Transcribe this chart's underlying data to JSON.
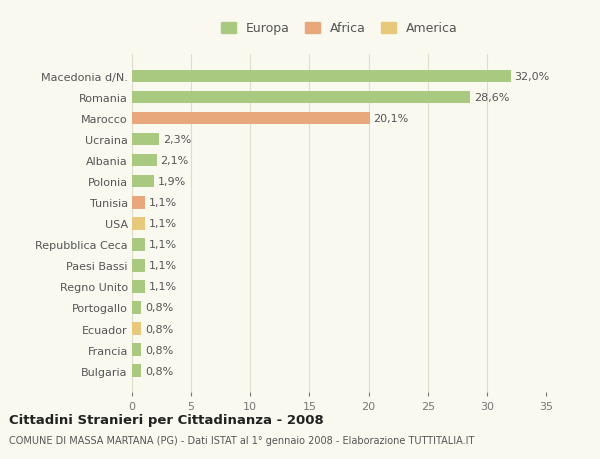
{
  "categories": [
    "Macedonia d/N.",
    "Romania",
    "Marocco",
    "Ucraina",
    "Albania",
    "Polonia",
    "Tunisia",
    "USA",
    "Repubblica Ceca",
    "Paesi Bassi",
    "Regno Unito",
    "Portogallo",
    "Ecuador",
    "Francia",
    "Bulgaria"
  ],
  "values": [
    32.0,
    28.6,
    20.1,
    2.3,
    2.1,
    1.9,
    1.1,
    1.1,
    1.1,
    1.1,
    1.1,
    0.8,
    0.8,
    0.8,
    0.8
  ],
  "labels": [
    "32,0%",
    "28,6%",
    "20,1%",
    "2,3%",
    "2,1%",
    "1,9%",
    "1,1%",
    "1,1%",
    "1,1%",
    "1,1%",
    "1,1%",
    "0,8%",
    "0,8%",
    "0,8%",
    "0,8%"
  ],
  "colors": [
    "#a8c97f",
    "#a8c97f",
    "#e8a87c",
    "#a8c97f",
    "#a8c97f",
    "#a8c97f",
    "#e8a87c",
    "#e8c97c",
    "#a8c97f",
    "#a8c97f",
    "#a8c97f",
    "#a8c97f",
    "#e8c97c",
    "#a8c97f",
    "#a8c97f"
  ],
  "legend": [
    {
      "label": "Europa",
      "color": "#a8c97f"
    },
    {
      "label": "Africa",
      "color": "#e8a87c"
    },
    {
      "label": "America",
      "color": "#e8c97c"
    }
  ],
  "title": "Cittadini Stranieri per Cittadinanza - 2008",
  "subtitle": "COMUNE DI MASSA MARTANA (PG) - Dati ISTAT al 1° gennaio 2008 - Elaborazione TUTTITALIA.IT",
  "xlim": [
    0,
    35
  ],
  "xticks": [
    0,
    5,
    10,
    15,
    20,
    25,
    30,
    35
  ],
  "bg_color": "#f9f9f0",
  "grid_color": "#ddddcc",
  "label_fontsize": 8.0,
  "tick_fontsize": 8.0,
  "bar_height": 0.6
}
